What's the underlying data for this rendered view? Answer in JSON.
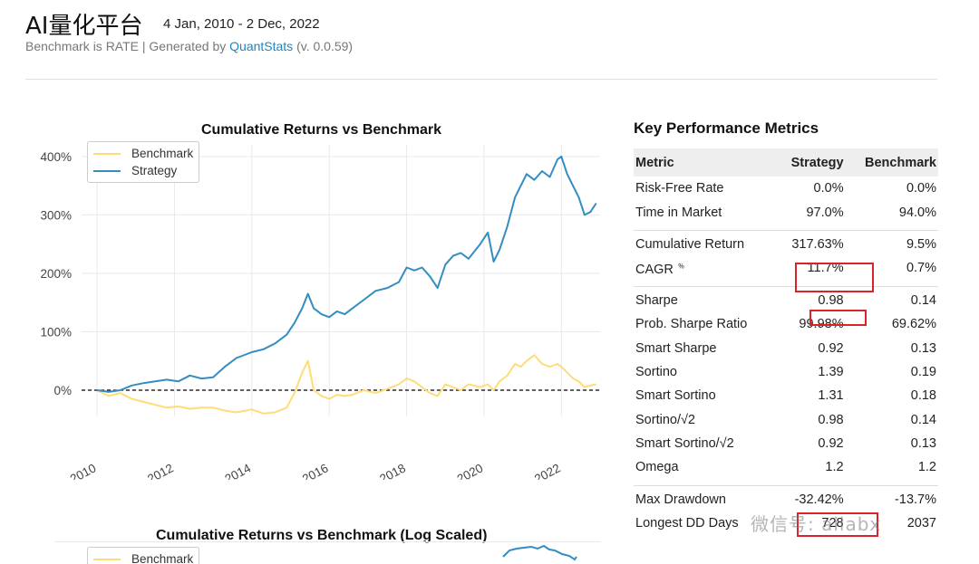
{
  "header": {
    "title": "AI量化平台",
    "date_range": "4 Jan, 2010 - 2 Dec, 2022",
    "subtitle_prefix": "Benchmark is RATE | Generated by ",
    "subtitle_link": "QuantStats",
    "subtitle_suffix": " (v. 0.0.59)"
  },
  "colors": {
    "strategy": "#348dc1",
    "benchmark": "#fedd78",
    "highlight": "#d9232b"
  },
  "chart_data": [
    {
      "type": "line",
      "title": "Cumulative Returns vs Benchmark",
      "xlabel": "",
      "ylabel": "",
      "xlim": [
        2009.6,
        2023.0
      ],
      "ylim": [
        -45,
        420
      ],
      "yticks": [
        0,
        100,
        200,
        300,
        400
      ],
      "ytick_labels": [
        "0%",
        "100%",
        "200%",
        "300%",
        "400%"
      ],
      "xticks": [
        2010,
        2012,
        2014,
        2016,
        2018,
        2020,
        2022
      ],
      "xtick_labels": [
        "2010",
        "2012",
        "2014",
        "2016",
        "2018",
        "2020",
        "2022"
      ],
      "legend": [
        "Benchmark",
        "Strategy"
      ],
      "legend_position": "top-left",
      "grid": true,
      "baseline": 0,
      "series": [
        {
          "name": "Strategy",
          "x": [
            2010.0,
            2010.3,
            2010.6,
            2010.9,
            2011.2,
            2011.5,
            2011.8,
            2012.1,
            2012.4,
            2012.7,
            2013.0,
            2013.3,
            2013.6,
            2014.0,
            2014.3,
            2014.6,
            2014.9,
            2015.1,
            2015.3,
            2015.45,
            2015.6,
            2015.8,
            2016.0,
            2016.2,
            2016.4,
            2016.6,
            2016.9,
            2017.2,
            2017.5,
            2017.8,
            2018.0,
            2018.2,
            2018.4,
            2018.6,
            2018.8,
            2019.0,
            2019.2,
            2019.4,
            2019.6,
            2019.9,
            2020.1,
            2020.25,
            2020.4,
            2020.6,
            2020.8,
            2020.95,
            2021.1,
            2021.3,
            2021.5,
            2021.7,
            2021.9,
            2022.0,
            2022.15,
            2022.3,
            2022.45,
            2022.6,
            2022.75,
            2022.9
          ],
          "values": [
            0,
            -3,
            0,
            8,
            12,
            15,
            18,
            15,
            25,
            20,
            22,
            40,
            55,
            65,
            70,
            80,
            95,
            115,
            140,
            165,
            140,
            130,
            125,
            135,
            130,
            140,
            155,
            170,
            175,
            185,
            210,
            205,
            210,
            195,
            175,
            215,
            230,
            235,
            225,
            250,
            270,
            220,
            240,
            280,
            330,
            350,
            370,
            360,
            375,
            365,
            395,
            400,
            370,
            350,
            330,
            300,
            305,
            320
          ]
        },
        {
          "name": "Benchmark",
          "x": [
            2010.0,
            2010.3,
            2010.6,
            2010.9,
            2011.2,
            2011.5,
            2011.8,
            2012.1,
            2012.4,
            2012.7,
            2013.0,
            2013.3,
            2013.6,
            2014.0,
            2014.3,
            2014.6,
            2014.9,
            2015.1,
            2015.3,
            2015.45,
            2015.6,
            2015.8,
            2016.0,
            2016.2,
            2016.4,
            2016.6,
            2016.9,
            2017.2,
            2017.5,
            2017.8,
            2018.0,
            2018.2,
            2018.4,
            2018.6,
            2018.8,
            2019.0,
            2019.2,
            2019.4,
            2019.6,
            2019.9,
            2020.1,
            2020.25,
            2020.4,
            2020.6,
            2020.8,
            2020.95,
            2021.1,
            2021.3,
            2021.5,
            2021.7,
            2021.9,
            2022.0,
            2022.15,
            2022.3,
            2022.45,
            2022.6,
            2022.75,
            2022.9
          ],
          "values": [
            0,
            -10,
            -5,
            -15,
            -20,
            -25,
            -30,
            -28,
            -32,
            -30,
            -30,
            -35,
            -38,
            -33,
            -40,
            -38,
            -30,
            -5,
            30,
            50,
            0,
            -10,
            -15,
            -8,
            -10,
            -8,
            0,
            -5,
            2,
            10,
            20,
            15,
            5,
            -5,
            -10,
            10,
            5,
            0,
            10,
            5,
            10,
            0,
            15,
            25,
            45,
            40,
            50,
            60,
            45,
            40,
            45,
            40,
            30,
            20,
            15,
            5,
            8,
            10
          ]
        }
      ]
    },
    {
      "type": "line",
      "title": "Cumulative Returns vs Benchmark (Log Scaled)",
      "legend": [
        "Benchmark"
      ],
      "legend_position": "top-left"
    }
  ],
  "metrics": {
    "title": "Key Performance Metrics",
    "headers": [
      "Metric",
      "Strategy",
      "Benchmark"
    ],
    "groups": [
      [
        {
          "label": "Risk-Free Rate",
          "strategy": "0.0%",
          "benchmark": "0.0%"
        },
        {
          "label": "Time in Market",
          "strategy": "97.0%",
          "benchmark": "94.0%"
        }
      ],
      [
        {
          "label": "Cumulative Return",
          "strategy": "317.63%",
          "benchmark": "9.5%"
        },
        {
          "label": "CAGR",
          "label_sup": "﹪",
          "strategy": "11.7%",
          "benchmark": "0.7%"
        }
      ],
      [
        {
          "label": "Sharpe",
          "strategy": "0.98",
          "benchmark": "0.14"
        },
        {
          "label": "Prob. Sharpe Ratio",
          "strategy": "99.98%",
          "benchmark": "69.62%"
        },
        {
          "label": "Smart Sharpe",
          "strategy": "0.92",
          "benchmark": "0.13"
        },
        {
          "label": "Sortino",
          "strategy": "1.39",
          "benchmark": "0.19"
        },
        {
          "label": "Smart Sortino",
          "strategy": "1.31",
          "benchmark": "0.18"
        },
        {
          "label": "Sortino/√2",
          "strategy": "0.98",
          "benchmark": "0.14"
        },
        {
          "label": "Smart Sortino/√2",
          "strategy": "0.92",
          "benchmark": "0.13"
        },
        {
          "label": "Omega",
          "strategy": "1.2",
          "benchmark": "1.2"
        }
      ],
      [
        {
          "label": "Max Drawdown",
          "strategy": "-32.42%",
          "benchmark": "-13.7%"
        },
        {
          "label": "Longest DD Days",
          "strategy": "728",
          "benchmark": "2037"
        }
      ]
    ]
  },
  "watermark": "微信号: ailabx"
}
